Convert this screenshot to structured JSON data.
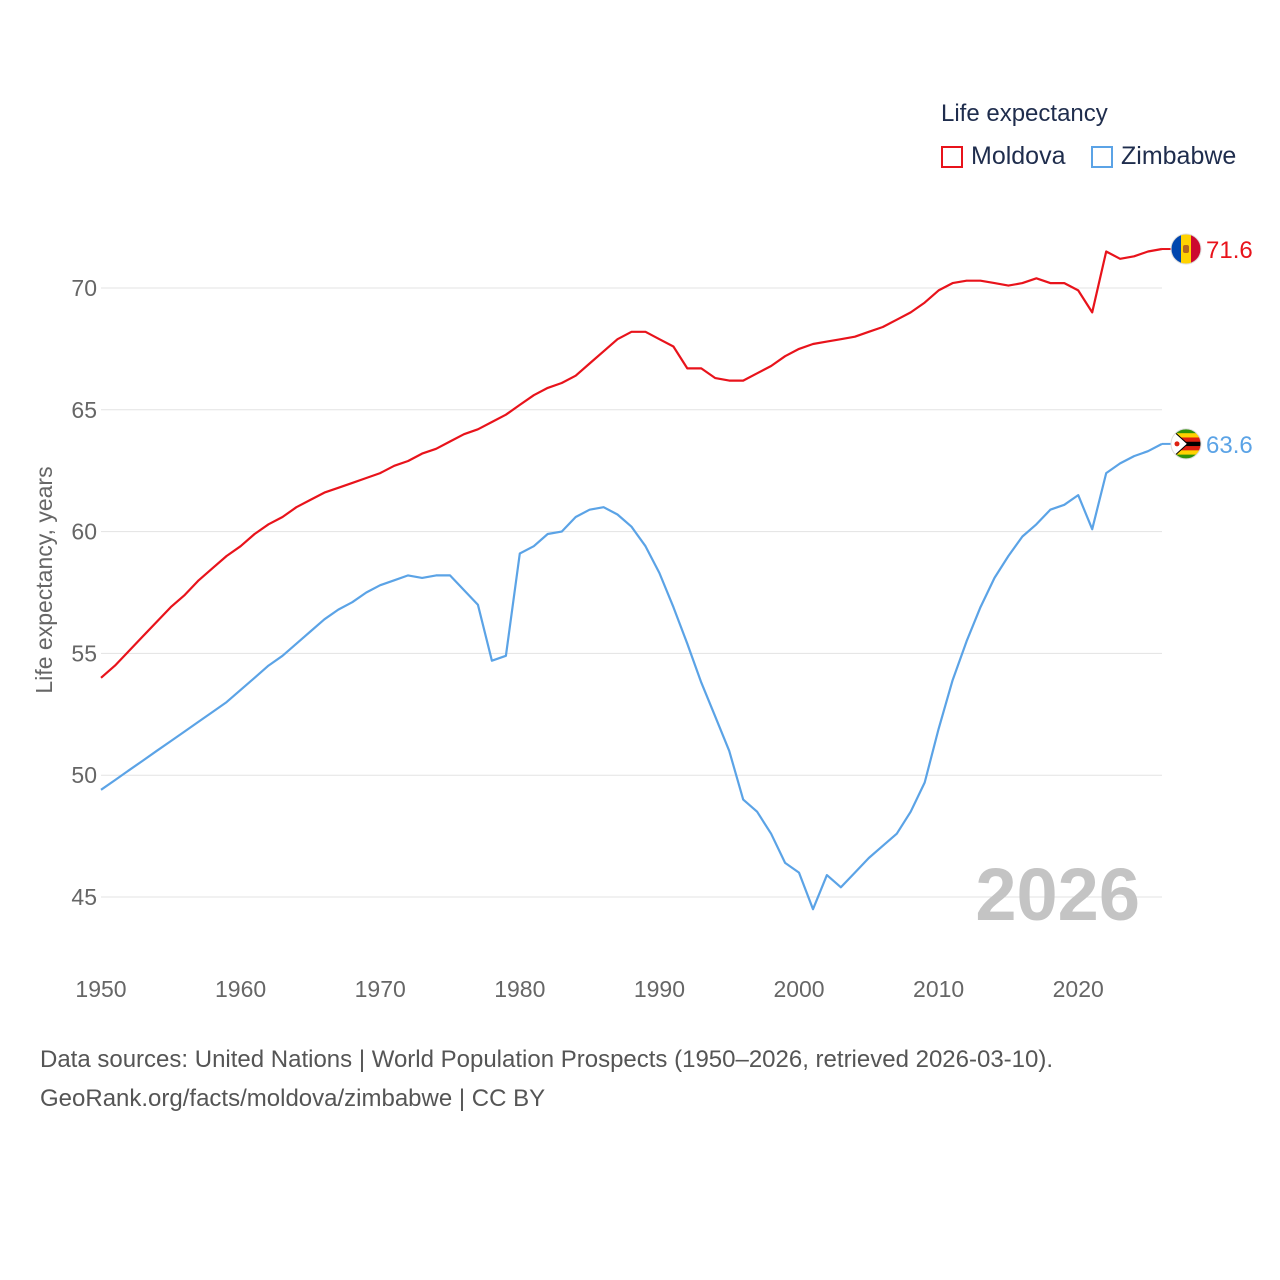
{
  "chart_data": {
    "type": "line",
    "ylabel": "Life expectancy, years",
    "xlim": [
      1950,
      2026
    ],
    "ylim": [
      45,
      70
    ],
    "x_ticks": [
      "1950",
      "1960",
      "1970",
      "1980",
      "1990",
      "2000",
      "2010",
      "2020"
    ],
    "y_ticks": [
      "45",
      "50",
      "55",
      "60",
      "65",
      "70"
    ],
    "legend_title": "Life expectancy",
    "year_label": "2026",
    "series": [
      {
        "name": "Moldova",
        "color": "#e8131b",
        "end_label": "71.6",
        "flag_icon": "moldova-flag-icon",
        "x": [
          1950,
          1951,
          1952,
          1953,
          1954,
          1955,
          1956,
          1957,
          1958,
          1959,
          1960,
          1961,
          1962,
          1963,
          1964,
          1965,
          1966,
          1967,
          1968,
          1969,
          1970,
          1971,
          1972,
          1973,
          1974,
          1975,
          1976,
          1977,
          1978,
          1979,
          1980,
          1981,
          1982,
          1983,
          1984,
          1985,
          1986,
          1987,
          1988,
          1989,
          1990,
          1991,
          1992,
          1993,
          1994,
          1995,
          1996,
          1997,
          1998,
          1999,
          2000,
          2001,
          2002,
          2003,
          2004,
          2005,
          2006,
          2007,
          2008,
          2009,
          2010,
          2011,
          2012,
          2013,
          2014,
          2015,
          2016,
          2017,
          2018,
          2019,
          2020,
          2021,
          2022,
          2023,
          2024,
          2025,
          2026
        ],
        "values": [
          54.0,
          54.5,
          55.1,
          55.7,
          56.3,
          56.9,
          57.4,
          58.0,
          58.5,
          59.0,
          59.4,
          59.9,
          60.3,
          60.6,
          61.0,
          61.3,
          61.6,
          61.8,
          62.0,
          62.2,
          62.4,
          62.7,
          62.9,
          63.2,
          63.4,
          63.7,
          64.0,
          64.2,
          64.5,
          64.8,
          65.2,
          65.6,
          65.9,
          66.1,
          66.4,
          66.9,
          67.4,
          67.9,
          68.2,
          68.2,
          67.9,
          67.6,
          66.7,
          66.7,
          66.3,
          66.2,
          66.2,
          66.5,
          66.8,
          67.2,
          67.5,
          67.7,
          67.8,
          67.9,
          68.0,
          68.2,
          68.4,
          68.7,
          69.0,
          69.4,
          69.9,
          70.2,
          70.3,
          70.3,
          70.2,
          70.1,
          70.2,
          70.4,
          70.2,
          70.2,
          69.9,
          69.0,
          71.5,
          71.2,
          71.3,
          71.5,
          71.6
        ]
      },
      {
        "name": "Zimbabwe",
        "color": "#5ba3e6",
        "end_label": "63.6",
        "flag_icon": "zimbabwe-flag-icon",
        "x": [
          1950,
          1951,
          1952,
          1953,
          1954,
          1955,
          1956,
          1957,
          1958,
          1959,
          1960,
          1961,
          1962,
          1963,
          1964,
          1965,
          1966,
          1967,
          1968,
          1969,
          1970,
          1971,
          1972,
          1973,
          1974,
          1975,
          1976,
          1977,
          1978,
          1979,
          1980,
          1981,
          1982,
          1983,
          1984,
          1985,
          1986,
          1987,
          1988,
          1989,
          1990,
          1991,
          1992,
          1993,
          1994,
          1995,
          1996,
          1997,
          1998,
          1999,
          2000,
          2001,
          2002,
          2003,
          2004,
          2005,
          2006,
          2007,
          2008,
          2009,
          2010,
          2011,
          2012,
          2013,
          2014,
          2015,
          2016,
          2017,
          2018,
          2019,
          2020,
          2021,
          2022,
          2023,
          2024,
          2025,
          2026
        ],
        "values": [
          49.4,
          49.8,
          50.2,
          50.6,
          51.0,
          51.4,
          51.8,
          52.2,
          52.6,
          53.0,
          53.5,
          54.0,
          54.5,
          54.9,
          55.4,
          55.9,
          56.4,
          56.8,
          57.1,
          57.5,
          57.8,
          58.0,
          58.2,
          58.1,
          58.2,
          58.2,
          57.6,
          57.0,
          54.7,
          54.9,
          59.1,
          59.4,
          59.9,
          60.0,
          60.6,
          60.9,
          61.0,
          60.7,
          60.2,
          59.4,
          58.3,
          56.9,
          55.4,
          53.8,
          52.4,
          51.0,
          49.0,
          48.5,
          47.6,
          46.4,
          46.0,
          44.5,
          45.9,
          45.4,
          46.0,
          46.6,
          47.1,
          47.6,
          48.5,
          49.7,
          51.9,
          53.9,
          55.5,
          56.9,
          58.1,
          59.0,
          59.8,
          60.3,
          60.9,
          61.1,
          61.5,
          60.1,
          62.4,
          62.8,
          63.1,
          63.3,
          63.6
        ]
      }
    ]
  },
  "footer": {
    "line1": "Data sources: United Nations | World Population Prospects (1950–2026, retrieved 2026-03-10).",
    "line2": "GeoRank.org/facts/moldova/zimbabwe | CC BY"
  }
}
